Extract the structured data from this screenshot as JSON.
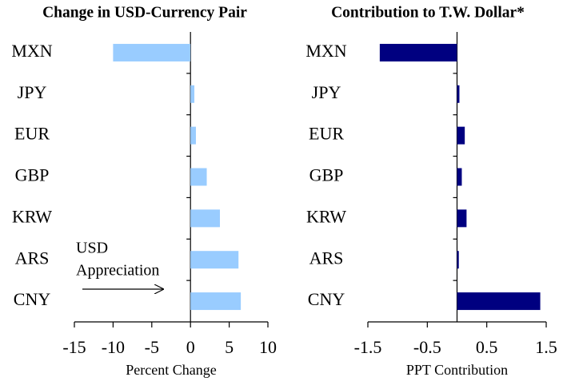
{
  "chart_data": [
    {
      "type": "bar",
      "orientation": "horizontal",
      "title": "Change in USD-Currency Pair",
      "categories": [
        "MXN",
        "JPY",
        "EUR",
        "GBP",
        "KRW",
        "ARS",
        "CNY"
      ],
      "values": [
        -10.0,
        0.5,
        0.7,
        2.1,
        3.8,
        6.2,
        6.5
      ],
      "color": "#99ccff",
      "xlim": [
        -15,
        10
      ],
      "xticks": [
        -15,
        -10,
        -5,
        0,
        5,
        10
      ],
      "xlabel": "Percent Change",
      "annotation_lines": [
        "USD",
        "Appreciation"
      ]
    },
    {
      "type": "bar",
      "orientation": "horizontal",
      "title": "Contribution to T.W. Dollar*",
      "categories": [
        "MXN",
        "JPY",
        "EUR",
        "GBP",
        "KRW",
        "ARS",
        "CNY"
      ],
      "values": [
        -1.3,
        0.04,
        0.13,
        0.08,
        0.16,
        0.03,
        1.4
      ],
      "color": "#000080",
      "xlim": [
        -1.5,
        1.5
      ],
      "xticks": [
        -1.5,
        -0.5,
        0.5,
        1.5
      ],
      "xlabel": "PPT Contribution"
    }
  ]
}
